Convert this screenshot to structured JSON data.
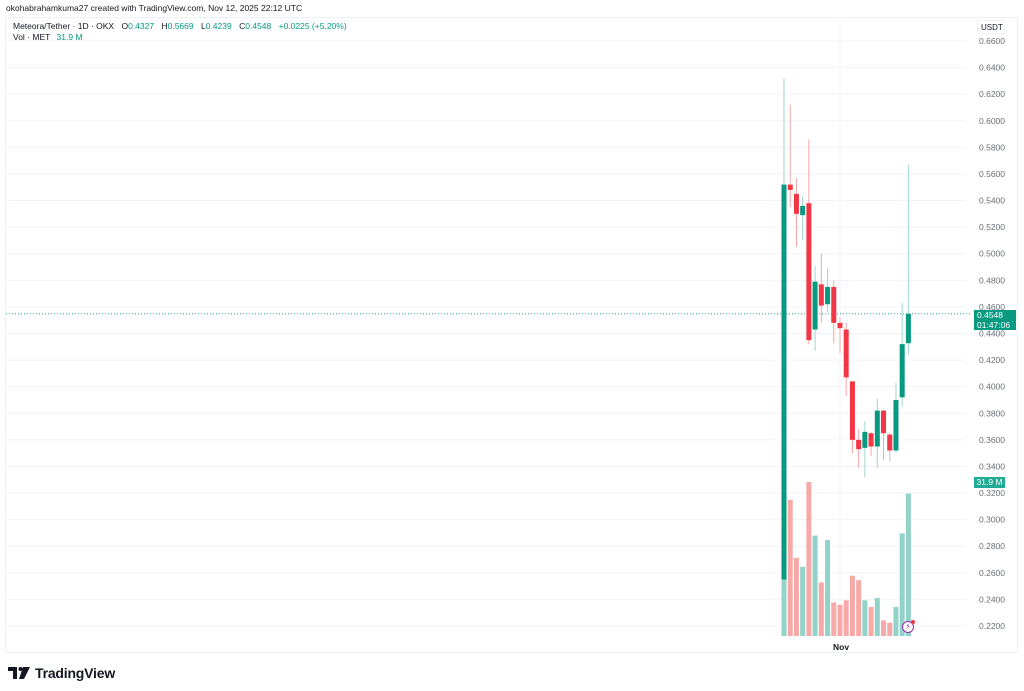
{
  "header": {
    "credit": "okohabrahamkuma27 created with TradingView.com, Nov 12, 2025 22:12 UTC"
  },
  "legend": {
    "symbol": "Meteora/Tether · 1D · OKX",
    "open_label": "O",
    "open": "0.4327",
    "high_label": "H",
    "high": "0.5669",
    "low_label": "L",
    "low": "0.4239",
    "close_label": "C",
    "close": "0.4548",
    "change": "+0.0225 (+5.20%)",
    "volume_label": "Vol · MET",
    "volume": "31.9 M"
  },
  "axis": {
    "currency": "USDT",
    "current_price": "0.4548",
    "countdown": "01:47:06",
    "volume_tag": "31.9 M"
  },
  "footer": {
    "brand": "TradingView"
  },
  "colors": {
    "up": "#089981",
    "down": "#f23645",
    "vol_up": "#92d2c8",
    "vol_down": "#f7a9a7",
    "grid": "#f0f3fa"
  },
  "chart_data": {
    "type": "candlestick",
    "title": "Meteora/Tether · 1D · OKX",
    "xlabel": "",
    "ylabel": "USDT",
    "x_tick_labels": [
      "Nov"
    ],
    "y_tick_labels": [
      "0.6600",
      "0.6400",
      "0.6200",
      "0.6000",
      "0.5800",
      "0.5600",
      "0.5400",
      "0.5200",
      "0.5000",
      "0.4800",
      "0.4600",
      "0.4400",
      "0.4200",
      "0.4000",
      "0.3800",
      "0.3600",
      "0.3400",
      "0.3200",
      "0.3000",
      "0.2800",
      "0.2600",
      "0.2400",
      "0.2200"
    ],
    "ylim": [
      0.21,
      0.67
    ],
    "grid": true,
    "series": [
      {
        "name": "Price",
        "candles": [
          {
            "o": 0.255,
            "h": 0.632,
            "l": 0.22,
            "c": 0.552
          },
          {
            "o": 0.552,
            "h": 0.612,
            "l": 0.535,
            "c": 0.548
          },
          {
            "o": 0.545,
            "h": 0.557,
            "l": 0.505,
            "c": 0.53
          },
          {
            "o": 0.529,
            "h": 0.543,
            "l": 0.51,
            "c": 0.536
          },
          {
            "o": 0.538,
            "h": 0.586,
            "l": 0.432,
            "c": 0.435
          },
          {
            "o": 0.443,
            "h": 0.491,
            "l": 0.427,
            "c": 0.479
          },
          {
            "o": 0.477,
            "h": 0.5,
            "l": 0.448,
            "c": 0.461
          },
          {
            "o": 0.462,
            "h": 0.489,
            "l": 0.456,
            "c": 0.475
          },
          {
            "o": 0.475,
            "h": 0.48,
            "l": 0.433,
            "c": 0.448
          },
          {
            "o": 0.448,
            "h": 0.452,
            "l": 0.425,
            "c": 0.444
          },
          {
            "o": 0.443,
            "h": 0.448,
            "l": 0.393,
            "c": 0.407
          },
          {
            "o": 0.404,
            "h": 0.404,
            "l": 0.35,
            "c": 0.36
          },
          {
            "o": 0.36,
            "h": 0.368,
            "l": 0.339,
            "c": 0.353
          },
          {
            "o": 0.354,
            "h": 0.374,
            "l": 0.332,
            "c": 0.366
          },
          {
            "o": 0.365,
            "h": 0.366,
            "l": 0.348,
            "c": 0.355
          },
          {
            "o": 0.355,
            "h": 0.391,
            "l": 0.339,
            "c": 0.382
          },
          {
            "o": 0.382,
            "h": 0.383,
            "l": 0.345,
            "c": 0.365
          },
          {
            "o": 0.364,
            "h": 0.365,
            "l": 0.344,
            "c": 0.352
          },
          {
            "o": 0.352,
            "h": 0.403,
            "l": 0.35,
            "c": 0.39
          },
          {
            "o": 0.392,
            "h": 0.463,
            "l": 0.385,
            "c": 0.432
          },
          {
            "o": 0.4327,
            "h": 0.5669,
            "l": 0.4239,
            "c": 0.4548
          }
        ]
      },
      {
        "name": "Vol · MET",
        "unit": "M",
        "values": [
          14.0,
          30.5,
          17.5,
          15.5,
          34.5,
          22.5,
          12.0,
          21.5,
          7.5,
          7.0,
          8.0,
          13.5,
          12.5,
          8.0,
          6.5,
          8.5,
          3.5,
          3.0,
          6.5,
          23.0,
          31.9
        ]
      }
    ],
    "current_price": 0.4548,
    "current_volume": "31.9 M"
  }
}
